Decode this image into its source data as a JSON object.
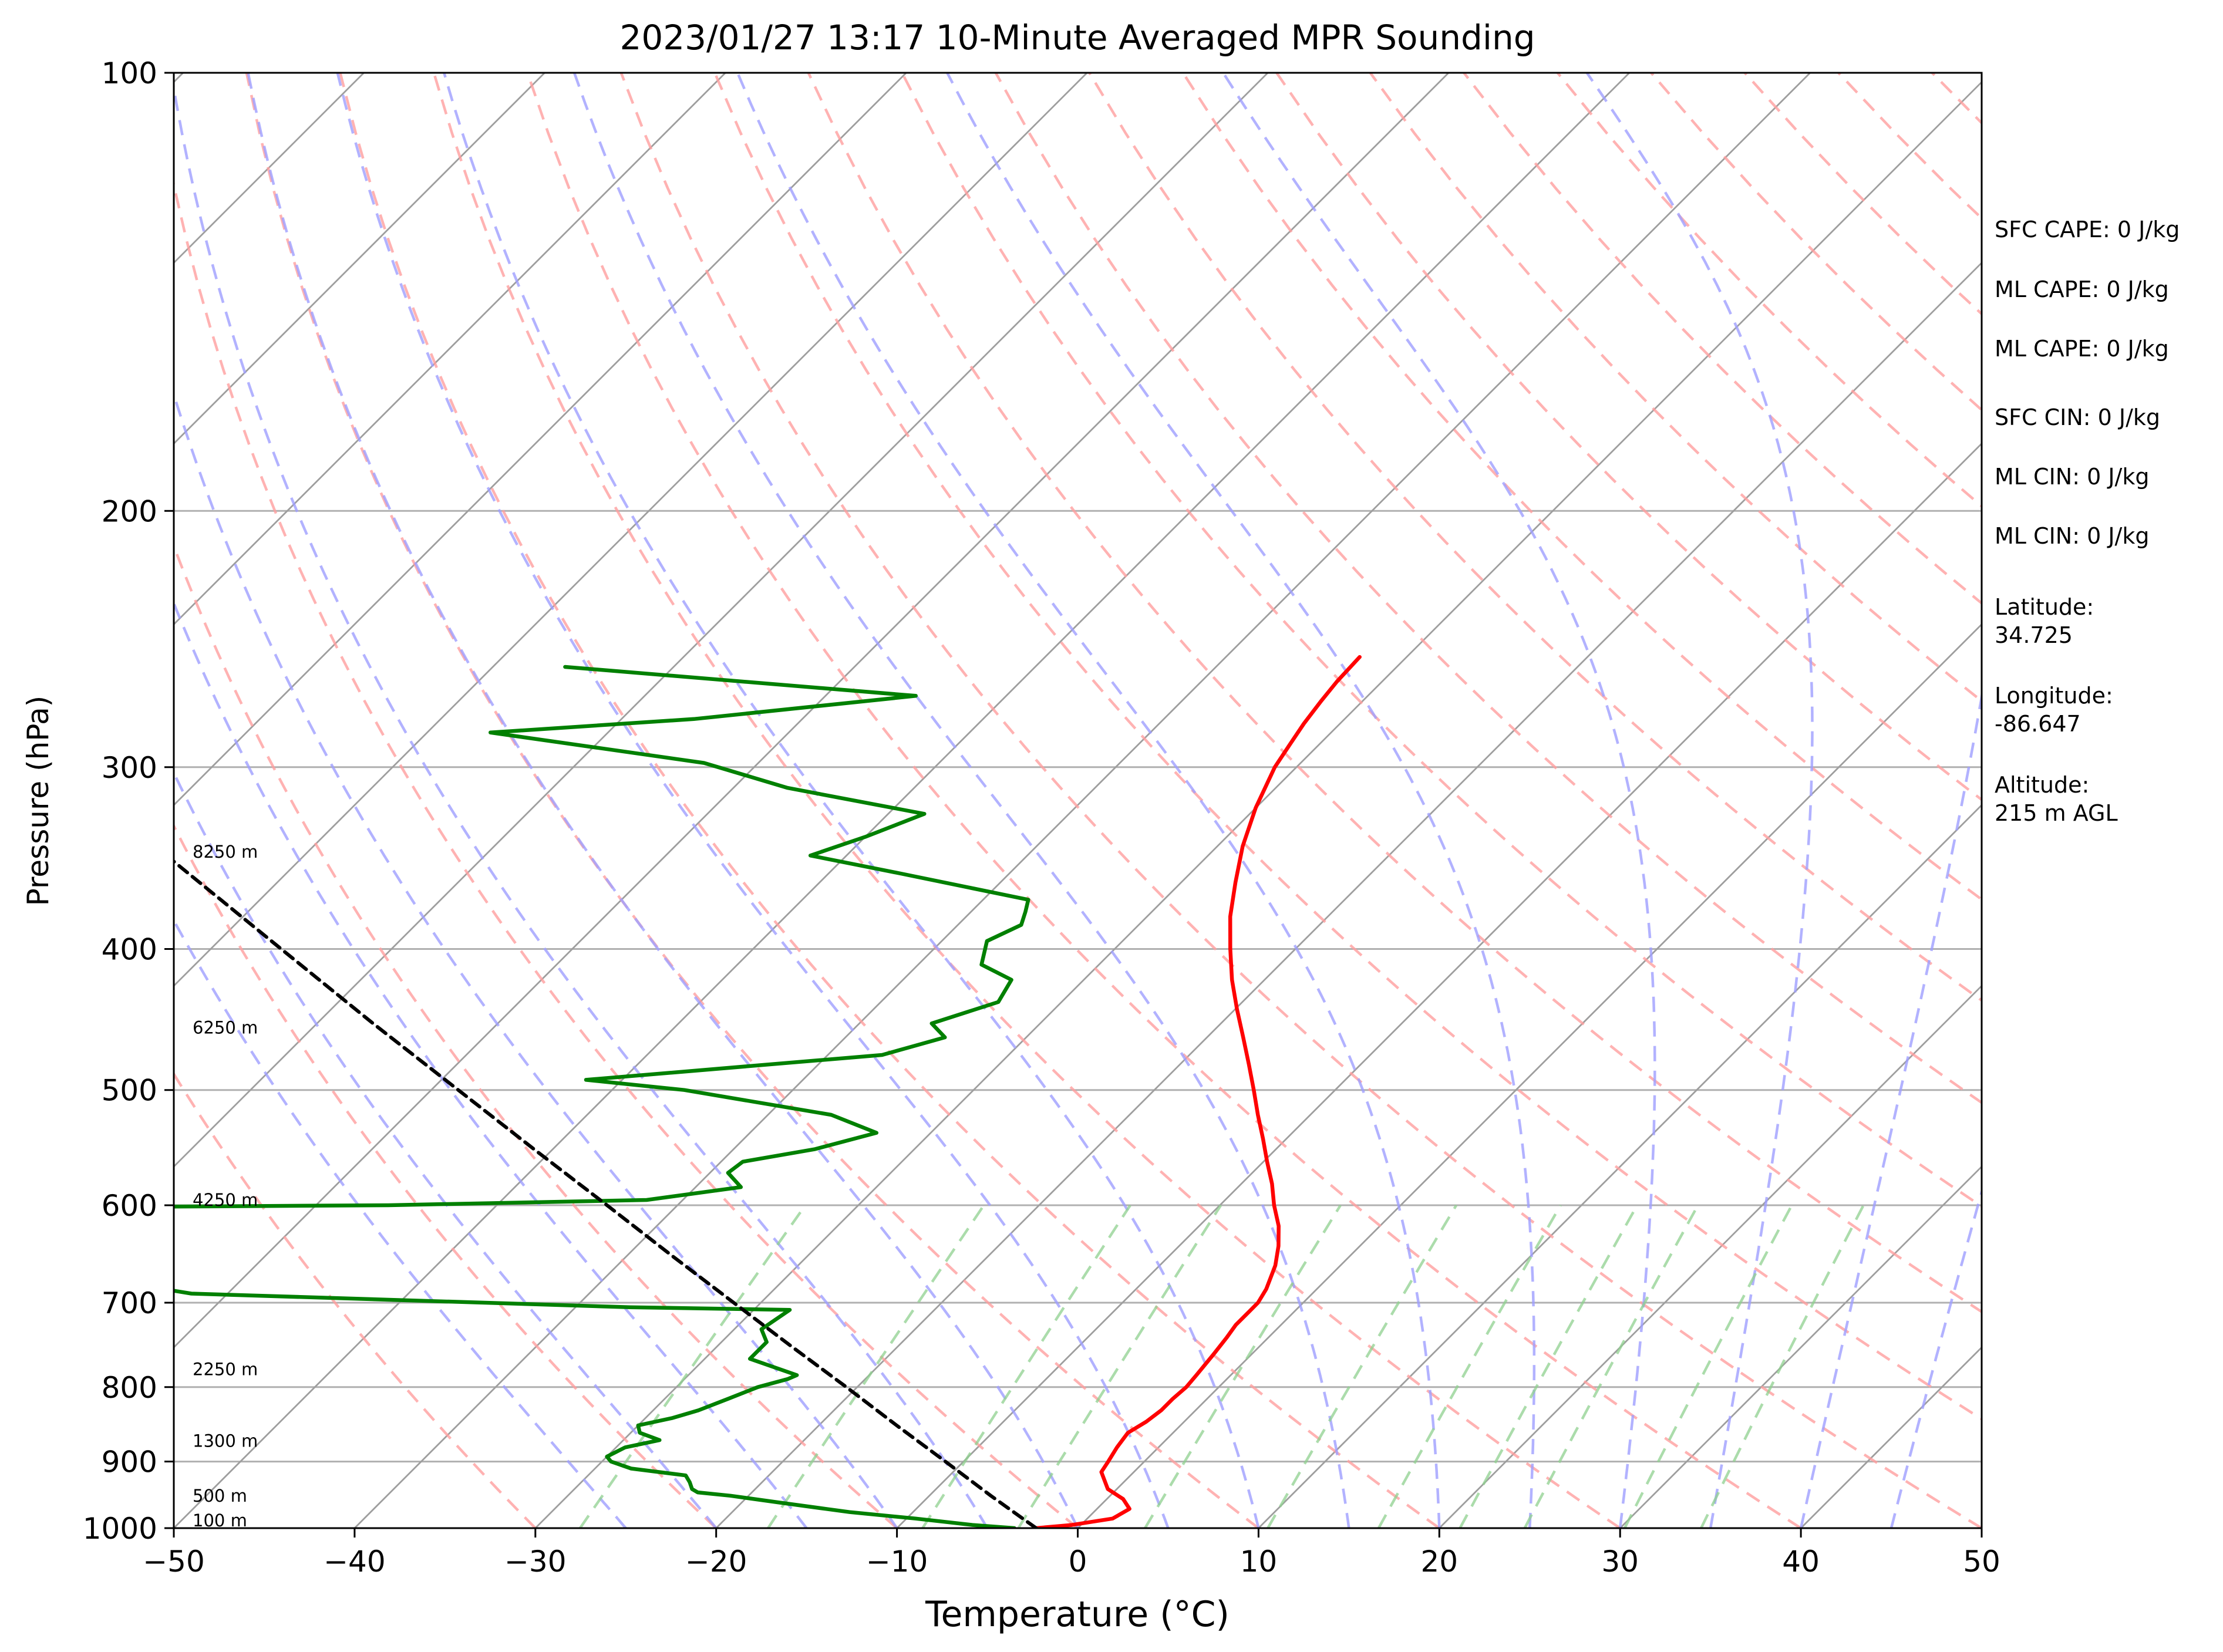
{
  "chart_data": {
    "type": "skew-t",
    "title": "2023/01/27 13:17 10-Minute Averaged MPR Sounding",
    "xlabel": "Temperature (°C)",
    "ylabel": "Pressure (hPa)",
    "xlim": [
      -50,
      50
    ],
    "ylim": [
      1000,
      100
    ],
    "x_ticks": [
      -50,
      -40,
      -30,
      -20,
      -10,
      0,
      10,
      20,
      30,
      40,
      50
    ],
    "y_ticks": [
      100,
      200,
      300,
      400,
      500,
      600,
      700,
      800,
      900,
      1000
    ],
    "y_scale": "log",
    "gridlines_pressure": [
      200,
      300,
      400,
      500,
      600,
      700,
      800,
      900
    ],
    "colors": {
      "temperature": "#ff0000",
      "dewpoint": "#008000",
      "parcel": "#000000",
      "isotherm": "#9e9e9e",
      "dry_adiabat": "#ff9f9f",
      "moist_adiabat": "#9f9fff",
      "mixing_ratio": "#8fd08f"
    },
    "series": [
      {
        "key": "temperature",
        "points": [
          [
            1000,
            -2.3
          ],
          [
            995,
            -0.5
          ],
          [
            985,
            1.4
          ],
          [
            970,
            1.8
          ],
          [
            955,
            0.9
          ],
          [
            940,
            -0.5
          ],
          [
            915,
            -1.8
          ],
          [
            900,
            -2.0
          ],
          [
            880,
            -2.3
          ],
          [
            860,
            -2.5
          ],
          [
            845,
            -2.1
          ],
          [
            830,
            -1.9
          ],
          [
            815,
            -1.9
          ],
          [
            800,
            -1.8
          ],
          [
            785,
            -1.9
          ],
          [
            760,
            -2.1
          ],
          [
            740,
            -2.3
          ],
          [
            725,
            -2.5
          ],
          [
            710,
            -2.5
          ],
          [
            700,
            -2.5
          ],
          [
            685,
            -2.8
          ],
          [
            660,
            -3.6
          ],
          [
            640,
            -4.5
          ],
          [
            620,
            -5.6
          ],
          [
            600,
            -7.0
          ],
          [
            580,
            -8.3
          ],
          [
            560,
            -9.8
          ],
          [
            540,
            -11.3
          ],
          [
            520,
            -12.9
          ],
          [
            500,
            -14.5
          ],
          [
            480,
            -16.2
          ],
          [
            460,
            -18.0
          ],
          [
            440,
            -19.9
          ],
          [
            420,
            -21.8
          ],
          [
            400,
            -23.6
          ],
          [
            380,
            -25.4
          ],
          [
            360,
            -27.0
          ],
          [
            340,
            -28.6
          ],
          [
            320,
            -30.0
          ],
          [
            300,
            -31.2
          ],
          [
            290,
            -31.6
          ],
          [
            280,
            -32.0
          ],
          [
            270,
            -32.3
          ],
          [
            262,
            -32.5
          ],
          [
            252,
            -32.6
          ]
        ]
      },
      {
        "key": "dewpoint",
        "points": [
          [
            1000,
            -3.5
          ],
          [
            995,
            -6.0
          ],
          [
            985,
            -9.5
          ],
          [
            975,
            -13.5
          ],
          [
            970,
            -15.0
          ],
          [
            960,
            -18.0
          ],
          [
            950,
            -21.0
          ],
          [
            945,
            -23.0
          ],
          [
            940,
            -23.5
          ],
          [
            930,
            -24.0
          ],
          [
            920,
            -24.6
          ],
          [
            910,
            -28.0
          ],
          [
            900,
            -29.5
          ],
          [
            893,
            -30.0
          ],
          [
            880,
            -29.5
          ],
          [
            870,
            -28.0
          ],
          [
            860,
            -29.5
          ],
          [
            850,
            -30.0
          ],
          [
            840,
            -28.5
          ],
          [
            830,
            -27.5
          ],
          [
            815,
            -26.5
          ],
          [
            800,
            -25.5
          ],
          [
            790,
            -24.3
          ],
          [
            785,
            -24.0
          ],
          [
            765,
            -27.5
          ],
          [
            745,
            -27.5
          ],
          [
            730,
            -28.5
          ],
          [
            708,
            -28.0
          ],
          [
            705,
            -37.0
          ],
          [
            690,
            -62.0
          ],
          [
            671,
            -69.0
          ],
          [
            663,
            -80.0
          ],
          [
            602,
            -75.0
          ],
          [
            600,
            -56.0
          ],
          [
            595,
            -42.0
          ],
          [
            583,
            -37.5
          ],
          [
            570,
            -39.0
          ],
          [
            560,
            -38.8
          ],
          [
            549,
            -35.5
          ],
          [
            535,
            -33.0
          ],
          [
            520,
            -36.5
          ],
          [
            500,
            -46.0
          ],
          [
            492,
            -52.0
          ],
          [
            473,
            -37.0
          ],
          [
            460,
            -34.5
          ],
          [
            450,
            -36.0
          ],
          [
            435,
            -33.5
          ],
          [
            420,
            -34.0
          ],
          [
            410,
            -36.5
          ],
          [
            395,
            -37.5
          ],
          [
            385,
            -36.5
          ],
          [
            377,
            -37.0
          ],
          [
            370,
            -37.5
          ],
          [
            355,
            -46.0
          ],
          [
            345,
            -52.0
          ],
          [
            335,
            -50.0
          ],
          [
            323,
            -48.0
          ],
          [
            310,
            -57.0
          ],
          [
            298,
            -63.0
          ],
          [
            284,
            -76.5
          ],
          [
            278,
            -66.0
          ],
          [
            268,
            -55.0
          ],
          [
            256,
            -76.0
          ]
        ]
      },
      {
        "key": "parcel",
        "points": [
          [
            1000,
            -2.3
          ],
          [
            950,
            -6.6
          ],
          [
            900,
            -11.0
          ],
          [
            850,
            -15.7
          ],
          [
            800,
            -20.6
          ],
          [
            750,
            -25.9
          ],
          [
            700,
            -31.5
          ],
          [
            650,
            -37.5
          ],
          [
            600,
            -43.9
          ],
          [
            550,
            -50.9
          ],
          [
            500,
            -58.5
          ],
          [
            450,
            -66.9
          ],
          [
            400,
            -76.1
          ],
          [
            350,
            -86.5
          ],
          [
            305,
            -97.1
          ]
        ]
      }
    ],
    "height_labels": [
      {
        "text": "100 m",
        "p": 988
      },
      {
        "text": "500 m",
        "p": 950
      },
      {
        "text": "1300 m",
        "p": 871
      },
      {
        "text": "2250 m",
        "p": 778
      },
      {
        "text": "4250 m",
        "p": 595
      },
      {
        "text": "6250 m",
        "p": 453
      },
      {
        "text": "8250 m",
        "p": 343
      }
    ],
    "stats": [
      "SFC CAPE: 0 J/kg",
      "ML CAPE: 0 J/kg",
      "ML CAPE: 0 J/kg",
      "SFC CIN: 0 J/kg",
      "ML CIN: 0 J/kg",
      "ML CIN: 0 J/kg"
    ],
    "location": [
      {
        "label": "Latitude:",
        "value": "34.725"
      },
      {
        "label": "Longitude:",
        "value": "-86.647"
      },
      {
        "label": "Altitude:",
        "value": "215 m AGL"
      }
    ],
    "grid": true,
    "legend": "none"
  }
}
